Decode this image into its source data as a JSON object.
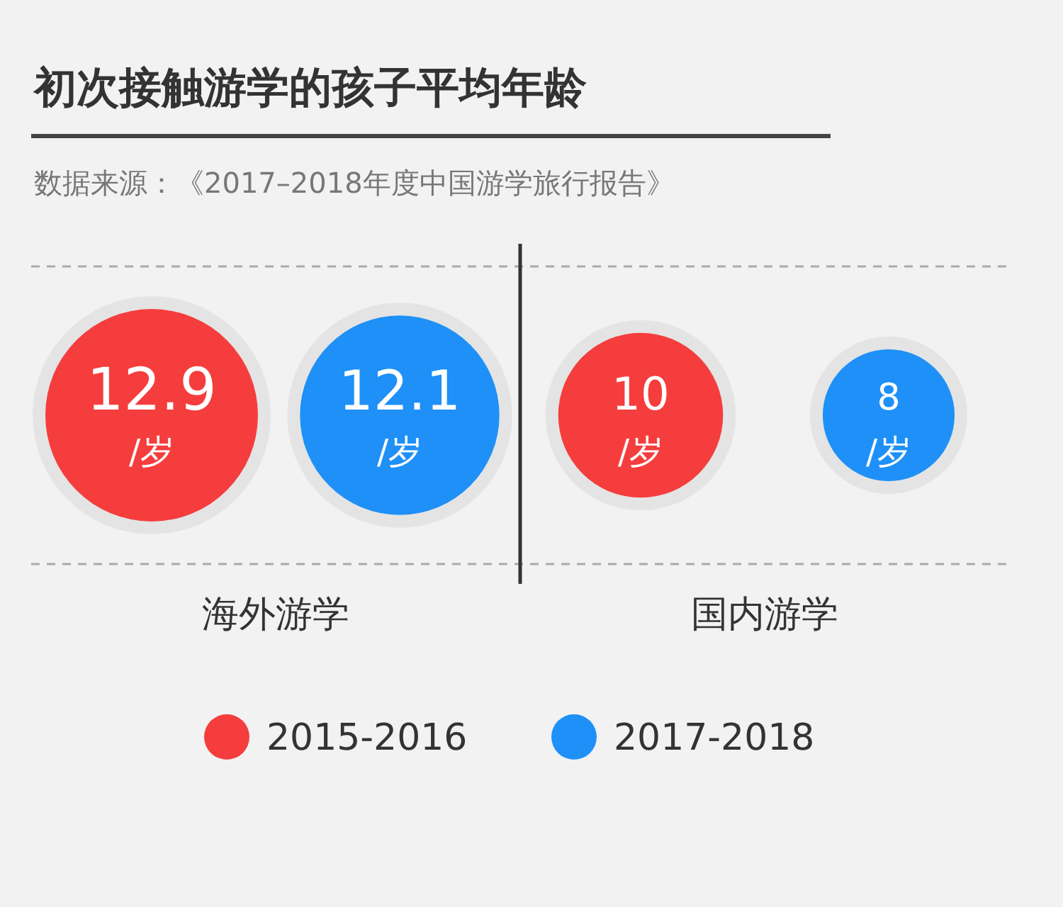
{
  "chart_data": {
    "type": "other",
    "title": "初次接触游学的孩子平均年龄",
    "annotations": [
      "数据来源：《2017–2018年度中国游学旅行报告》"
    ],
    "categories": [
      "海外游学",
      "国内游学"
    ],
    "series": [
      {
        "name": "2015-2016",
        "color": "#f53d3d",
        "values": [
          12.9,
          10
        ],
        "value_labels": [
          "12.9\n/岁",
          "10\n/岁"
        ]
      },
      {
        "name": "2017-2018",
        "color": "#1e90f7",
        "values": [
          12.1,
          8
        ],
        "value_labels": [
          "12.1\n/岁",
          "8\n/岁"
        ]
      }
    ],
    "legend": "bottom"
  }
}
